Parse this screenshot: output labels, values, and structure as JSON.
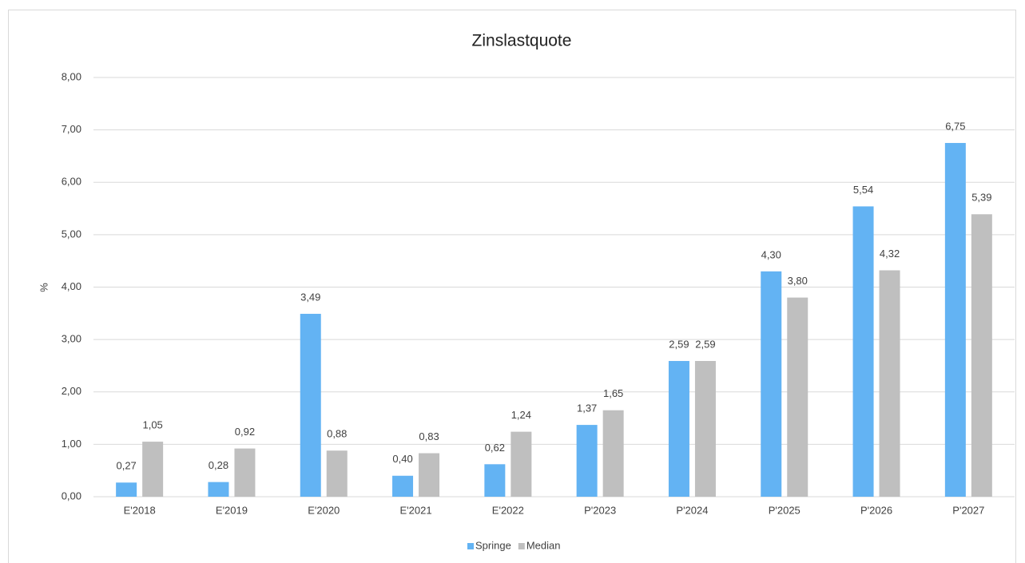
{
  "chart_data": {
    "type": "bar",
    "title": "Zinslastquote",
    "y_label": "%",
    "categories": [
      "E'2018",
      "E'2019",
      "E'2020",
      "E'2021",
      "E'2022",
      "P'2023",
      "P'2024",
      "P'2025",
      "P'2026",
      "P'2027"
    ],
    "series": [
      {
        "name": "Springe",
        "color": "#63b3f3",
        "values": [
          0.27,
          0.28,
          3.49,
          0.4,
          0.62,
          1.37,
          2.59,
          4.3,
          5.54,
          6.75
        ],
        "value_labels": [
          "0,27",
          "0,28",
          "3,49",
          "0,40",
          "0,62",
          "1,37",
          "2,59",
          "4,30",
          "5,54",
          "6,75"
        ]
      },
      {
        "name": "Median",
        "color": "#bfbfbf",
        "values": [
          1.05,
          0.92,
          0.88,
          0.83,
          1.24,
          1.65,
          2.59,
          3.8,
          4.32,
          5.39
        ],
        "value_labels": [
          "1,05",
          "0,92",
          "0,88",
          "0,83",
          "1,24",
          "1,65",
          "2,59",
          "3,80",
          "4,32",
          "5,39"
        ]
      }
    ],
    "ylim": [
      0,
      8
    ],
    "yticks": [
      {
        "value": 0,
        "label": "0,00"
      },
      {
        "value": 1,
        "label": "1,00"
      },
      {
        "value": 2,
        "label": "2,00"
      },
      {
        "value": 3,
        "label": "3,00"
      },
      {
        "value": 4,
        "label": "4,00"
      },
      {
        "value": 5,
        "label": "5,00"
      },
      {
        "value": 6,
        "label": "6,00"
      },
      {
        "value": 7,
        "label": "7,00"
      },
      {
        "value": 8,
        "label": "8,00"
      }
    ],
    "grid": true,
    "legend": "bottom"
  }
}
